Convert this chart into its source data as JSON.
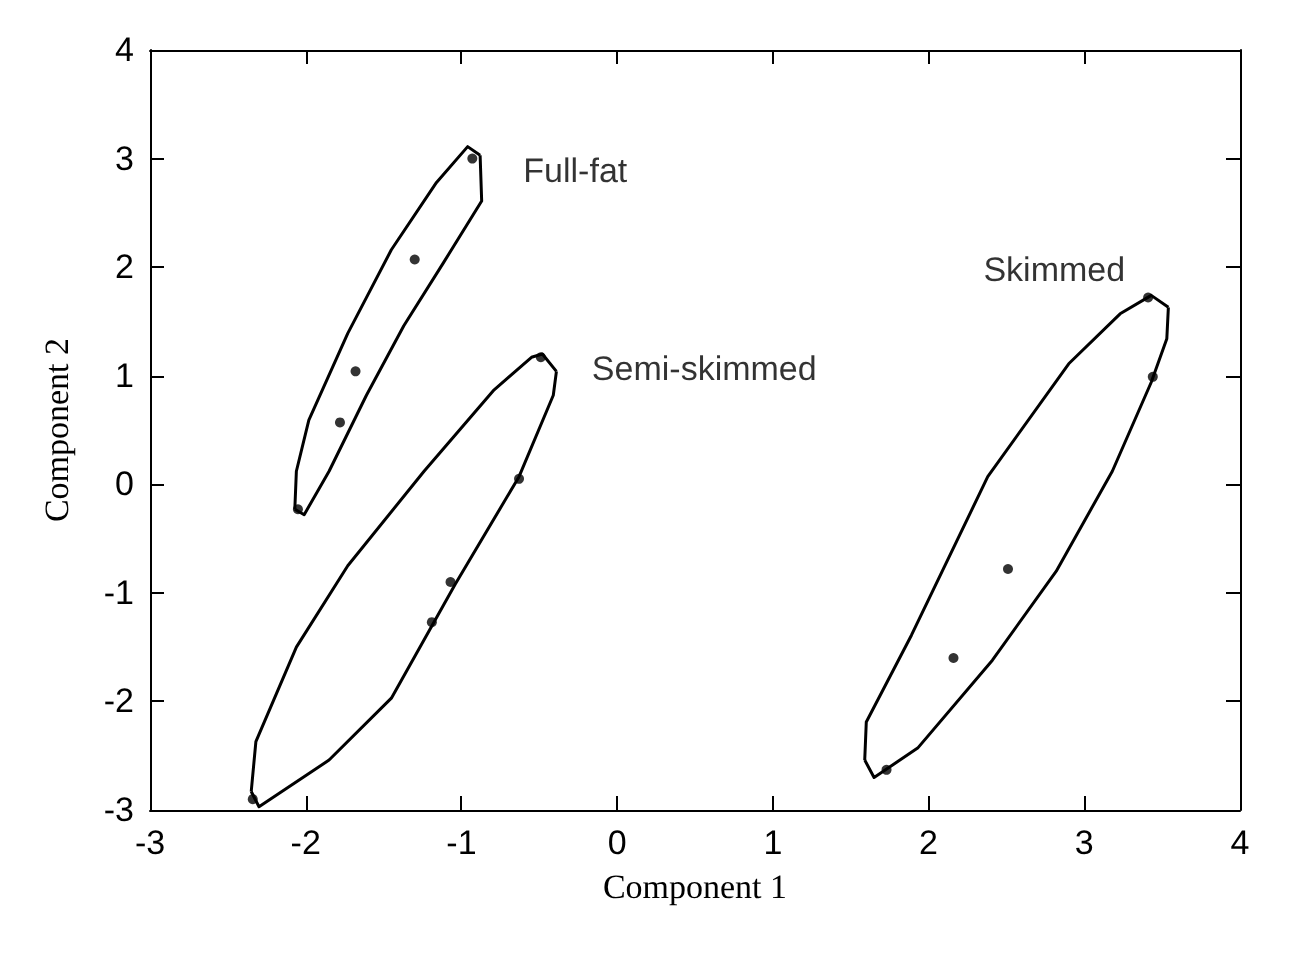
{
  "chart_data": {
    "type": "scatter",
    "xlabel": "Component 1",
    "ylabel": "Component 2",
    "xlim": [
      -3,
      4
    ],
    "ylim": [
      -3,
      4
    ],
    "xticks": [
      -3,
      -2,
      -1,
      0,
      1,
      2,
      3,
      4
    ],
    "yticks": [
      -3,
      -2,
      -1,
      0,
      1,
      2,
      3,
      4
    ],
    "grid": false,
    "legend": false,
    "marker": "circle",
    "series": [
      {
        "type": "line",
        "color": "#000000",
        "marker": "none",
        "line_style": "solid",
        "x": [
          -2.07,
          -2.06,
          -1.98,
          -1.73,
          -1.45,
          -1.16,
          -0.96,
          -0.88
        ],
        "values": [
          -0.23,
          0.12,
          0.59,
          1.39,
          2.16,
          2.78,
          3.11,
          3.03
        ]
      },
      {
        "type": "line",
        "color": "#000000",
        "marker": "none",
        "line_style": "solid",
        "x": [
          -2.07,
          -2.01,
          -1.85,
          -1.61,
          -1.37,
          -1.12,
          -0.87,
          -0.88
        ],
        "values": [
          -0.23,
          -0.28,
          0.12,
          0.82,
          1.46,
          2.03,
          2.61,
          3.03
        ]
      },
      {
        "type": "line",
        "color": "#000000",
        "marker": "none",
        "line_style": "solid",
        "x": [
          -2.35,
          -2.32,
          -2.06,
          -1.73,
          -1.24,
          -0.79,
          -0.55,
          -0.48,
          -0.39
        ],
        "values": [
          -2.83,
          -2.37,
          -1.5,
          -0.75,
          0.12,
          0.87,
          1.17,
          1.2,
          1.04
        ]
      },
      {
        "type": "line",
        "color": "#000000",
        "marker": "none",
        "line_style": "solid",
        "x": [
          -2.35,
          -2.3,
          -1.85,
          -1.45,
          -1.04,
          -0.63,
          -0.41,
          -0.39
        ],
        "values": [
          -2.83,
          -2.97,
          -2.54,
          -1.97,
          -0.92,
          0.07,
          0.82,
          1.04
        ]
      },
      {
        "type": "line",
        "color": "#000000",
        "marker": "none",
        "line_style": "solid",
        "x": [
          1.59,
          1.6,
          1.89,
          2.38,
          2.9,
          3.23,
          3.43,
          3.54
        ],
        "values": [
          -2.54,
          -2.19,
          -1.39,
          0.07,
          1.11,
          1.57,
          1.74,
          1.63
        ]
      },
      {
        "type": "line",
        "color": "#000000",
        "marker": "none",
        "line_style": "solid",
        "x": [
          1.59,
          1.65,
          1.93,
          2.41,
          2.82,
          3.18,
          3.43,
          3.53,
          3.54
        ],
        "values": [
          -2.54,
          -2.7,
          -2.43,
          -1.62,
          -0.8,
          0.12,
          0.94,
          1.34,
          1.63
        ]
      },
      {
        "name": "Full-fat",
        "color": "#000000",
        "x": [
          -0.93,
          -1.3,
          -1.68,
          -1.78,
          -2.05
        ],
        "values": [
          3.0,
          2.07,
          1.04,
          0.57,
          -0.23
        ]
      },
      {
        "name": "Semi-skimmed",
        "color": "#000000",
        "x": [
          -0.49,
          -0.63,
          -1.07,
          -1.19,
          -2.34
        ],
        "values": [
          1.17,
          0.05,
          -0.9,
          -1.27,
          -2.9
        ]
      },
      {
        "name": "Skimmed",
        "color": "#000000",
        "x": [
          3.41,
          3.44,
          2.51,
          2.16,
          1.73
        ],
        "values": [
          1.72,
          0.99,
          -0.78,
          -1.6,
          -2.63
        ]
      }
    ]
  }
}
